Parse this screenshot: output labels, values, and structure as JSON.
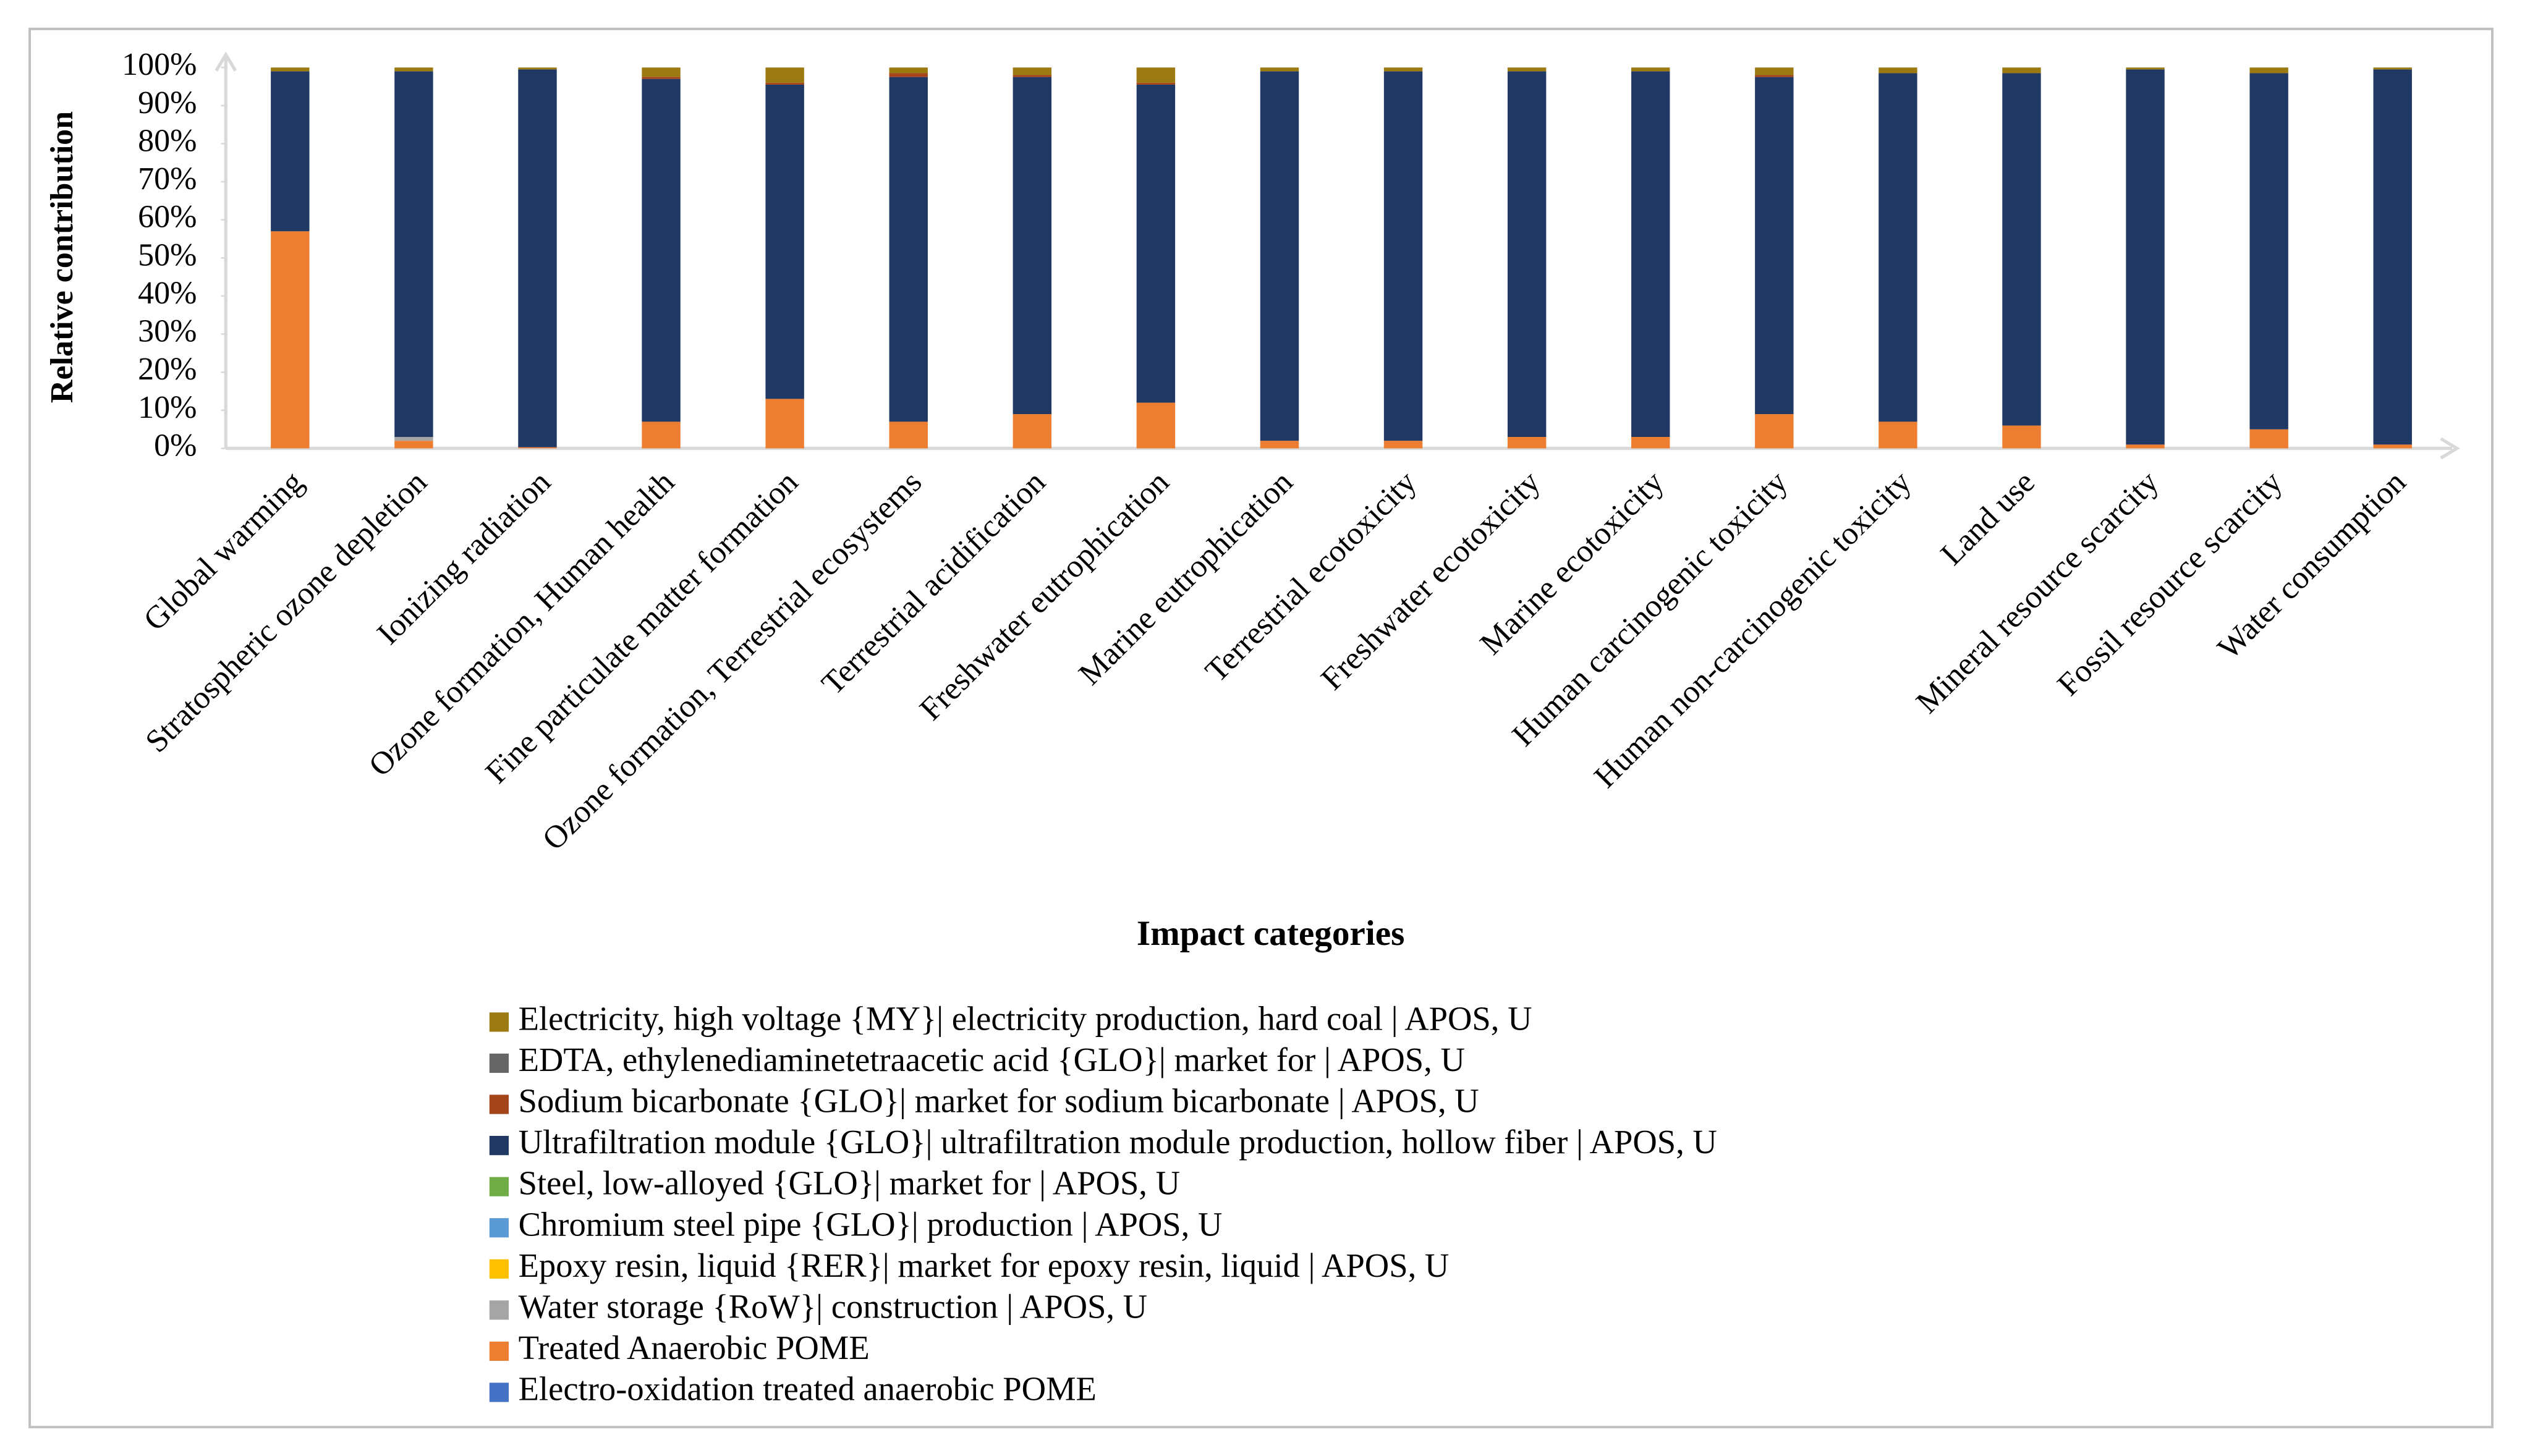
{
  "chart_data": {
    "type": "stacked_bar",
    "y_label": "Relative contribution",
    "x_label": "Impact categories",
    "categories": [
      "Global warming",
      "Stratospheric ozone depletion",
      "Ionizing radiation",
      "Ozone formation, Human health",
      "Fine particulate matter formation",
      "Ozone formation, Terrestrial ecosystems",
      "Terrestrial acidification",
      "Freshwater eutrophication",
      "Marine eutrophication",
      "Terrestrial ecotoxicity",
      "Freshwater ecotoxicity",
      "Marine ecotoxicity",
      "Human carcinogenic toxicity",
      "Human non-carcinogenic toxicity",
      "Land use",
      "Mineral resource scarcity",
      "Fossil resource scarcity",
      "Water consumption"
    ],
    "ylim": [
      0,
      100
    ],
    "yticks": [
      {
        "value": 0,
        "label": "0%"
      },
      {
        "value": 10,
        "label": "10%"
      },
      {
        "value": 20,
        "label": "20%"
      },
      {
        "value": 30,
        "label": "30%"
      },
      {
        "value": 40,
        "label": "40%"
      },
      {
        "value": 50,
        "label": "50%"
      },
      {
        "value": 60,
        "label": "60%"
      },
      {
        "value": 70,
        "label": "70%"
      },
      {
        "value": 80,
        "label": "80%"
      },
      {
        "value": 90,
        "label": "90%"
      },
      {
        "value": 100,
        "label": "100%"
      }
    ],
    "series": [
      {
        "name": "Electricity, high voltage {MY}| electricity production, hard coal | APOS, U",
        "color": "#9c7a12",
        "values": [
          1,
          1,
          0.5,
          2.5,
          4,
          1.5,
          2,
          4,
          1,
          1,
          1,
          1,
          2,
          1.5,
          1.5,
          0.5,
          1.5,
          0.5
        ]
      },
      {
        "name": "EDTA, ethylenediaminetetraacetic acid {GLO}| market for | APOS, U",
        "color": "#666666",
        "values": [
          0,
          0,
          0,
          0,
          0,
          0,
          0,
          0,
          0,
          0,
          0,
          0,
          0,
          0,
          0,
          0,
          0,
          0
        ]
      },
      {
        "name": "Sodium bicarbonate {GLO}| market for sodium bicarbonate | APOS, U",
        "color": "#a5451b",
        "values": [
          0,
          0,
          0,
          0.5,
          0.5,
          1,
          0.5,
          0.5,
          0,
          0,
          0,
          0,
          0.5,
          0,
          0,
          0,
          0,
          0
        ]
      },
      {
        "name": "Ultrafiltration module {GLO}| ultrafiltration module production, hollow fiber | APOS, U",
        "color": "#203864",
        "values": [
          42,
          96,
          99.2,
          90,
          82.5,
          90.5,
          88.5,
          83.5,
          97,
          97,
          96,
          96,
          88.5,
          91.5,
          92.5,
          98.5,
          93.5,
          98.5
        ]
      },
      {
        "name": "Steel, low-alloyed {GLO}| market for | APOS, U",
        "color": "#70ad47",
        "values": [
          0,
          0,
          0,
          0,
          0,
          0,
          0,
          0,
          0,
          0,
          0,
          0,
          0,
          0,
          0,
          0,
          0,
          0
        ]
      },
      {
        "name": "Chromium steel pipe {GLO}| production | APOS, U",
        "color": "#5b9bd5",
        "values": [
          0,
          0,
          0,
          0,
          0,
          0,
          0,
          0,
          0,
          0,
          0,
          0,
          0,
          0,
          0,
          0,
          0,
          0
        ]
      },
      {
        "name": "Epoxy resin, liquid {RER}| market for epoxy resin, liquid | APOS, U",
        "color": "#ffc000",
        "values": [
          0,
          0,
          0,
          0,
          0,
          0,
          0,
          0,
          0,
          0,
          0,
          0,
          0,
          0,
          0,
          0,
          0,
          0
        ]
      },
      {
        "name": "Water storage {RoW}| construction | APOS, U",
        "color": "#a5a5a5",
        "values": [
          0,
          1,
          0,
          0,
          0,
          0,
          0,
          0,
          0,
          0,
          0,
          0,
          0,
          0,
          0,
          0,
          0,
          0
        ]
      },
      {
        "name": "Treated Anaerobic POME",
        "color": "#ed7d31",
        "values": [
          57,
          2,
          0.3,
          7,
          13,
          7,
          9,
          12,
          2,
          2,
          3,
          3,
          9,
          7,
          6,
          1,
          5,
          1
        ]
      },
      {
        "name": "Electro-oxidation treated anaerobic POME",
        "color": "#4472c4",
        "values": [
          0,
          0,
          0,
          0,
          0,
          0,
          0,
          0,
          0,
          0,
          0,
          0,
          0,
          0,
          0,
          0,
          0,
          0
        ]
      }
    ]
  }
}
